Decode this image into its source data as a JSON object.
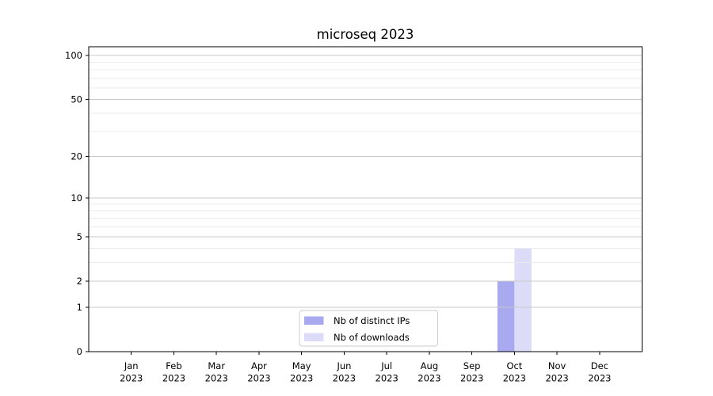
{
  "chart_data": {
    "type": "bar",
    "title": "microseq 2023",
    "x_ticks": [
      {
        "month": "Jan",
        "year": "2023"
      },
      {
        "month": "Feb",
        "year": "2023"
      },
      {
        "month": "Mar",
        "year": "2023"
      },
      {
        "month": "Apr",
        "year": "2023"
      },
      {
        "month": "May",
        "year": "2023"
      },
      {
        "month": "Jun",
        "year": "2023"
      },
      {
        "month": "Jul",
        "year": "2023"
      },
      {
        "month": "Aug",
        "year": "2023"
      },
      {
        "month": "Sep",
        "year": "2023"
      },
      {
        "month": "Oct",
        "year": "2023"
      },
      {
        "month": "Nov",
        "year": "2023"
      },
      {
        "month": "Dec",
        "year": "2023"
      }
    ],
    "series": [
      {
        "name": "Nb of distinct IPs",
        "color": "#a9a9f0",
        "values": [
          0,
          0,
          0,
          0,
          0,
          0,
          0,
          0,
          0,
          2,
          0,
          0
        ]
      },
      {
        "name": "Nb of downloads",
        "color": "#dcdcf8",
        "values": [
          0,
          0,
          0,
          0,
          0,
          0,
          0,
          0,
          0,
          4,
          0,
          0
        ]
      }
    ],
    "yscale": "log1p",
    "ylim": [
      0,
      115
    ],
    "y_major_ticks": [
      0,
      1,
      2,
      5,
      10,
      20,
      50,
      100
    ],
    "y_minor_ticks": [
      3,
      4,
      6,
      7,
      8,
      9,
      30,
      40,
      60,
      70,
      80,
      90
    ],
    "grid": true,
    "legend_position": "lower center",
    "xlabel": "",
    "ylabel": ""
  }
}
